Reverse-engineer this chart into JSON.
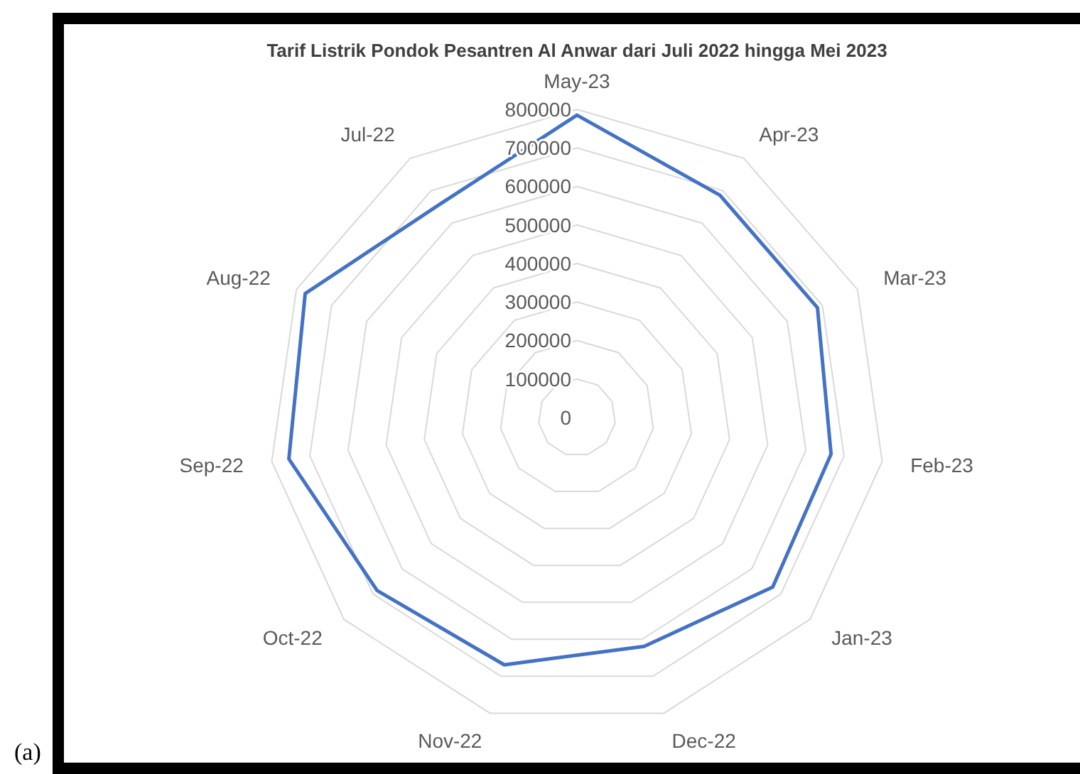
{
  "chart_data": {
    "type": "radar",
    "title": "Tarif Listrik Pondok Pesantren Al Anwar dari Juli 2022 hingga Mei 2023",
    "categories": [
      "May-23",
      "Apr-23",
      "Mar-23",
      "Feb-23",
      "Jan-23",
      "Dec-22",
      "Nov-22",
      "Oct-22",
      "Sep-22",
      "Aug-22",
      "Jul-22"
    ],
    "series": [
      {
        "color": "#4472c4",
        "values": [
          785000,
          686000,
          686000,
          666000,
          672000,
          619000,
          669000,
          686000,
          755000,
          775000,
          658000
        ]
      }
    ],
    "ylim": [
      0,
      800000
    ],
    "yticks": [
      0,
      100000,
      200000,
      300000,
      400000,
      500000,
      600000,
      700000,
      800000
    ],
    "grid": true,
    "marker": "none",
    "annotations": [
      "(a)"
    ]
  }
}
